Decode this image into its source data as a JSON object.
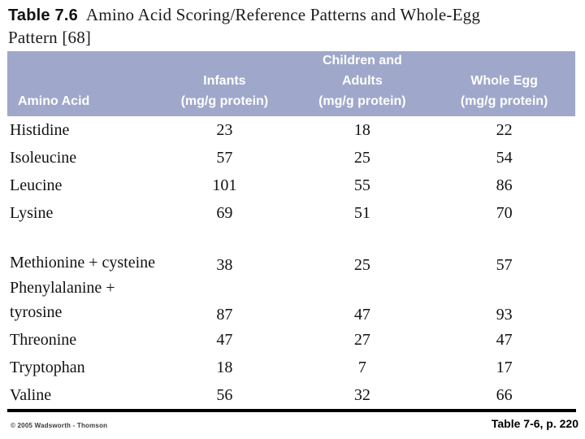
{
  "page": {
    "title_label": "Table 7.6",
    "title_text": "Amino Acid Scoring/Reference Patterns and Whole-Egg Pattern [68]"
  },
  "table": {
    "columns": [
      {
        "label": "Amino Acid",
        "unit": ""
      },
      {
        "label": "Infants",
        "unit": "(mg/g protein)"
      },
      {
        "label": "Children and Adults",
        "unit": "(mg/g protein)"
      },
      {
        "label": "Whole Egg",
        "unit": "(mg/g protein)"
      }
    ],
    "rows": [
      {
        "name": "Histidine",
        "infants": "23",
        "children_adults": "18",
        "whole_egg": "22"
      },
      {
        "name": "Isoleucine",
        "infants": "57",
        "children_adults": "25",
        "whole_egg": "54"
      },
      {
        "name": "Leucine",
        "infants": "101",
        "children_adults": "55",
        "whole_egg": "86"
      },
      {
        "name": "Lysine",
        "infants": "69",
        "children_adults": "51",
        "whole_egg": "70"
      },
      {
        "name": "Methionine + cysteine",
        "infants": "38",
        "children_adults": "25",
        "whole_egg": "57"
      },
      {
        "name": "Phenylalanine + tyrosine",
        "infants": "87",
        "children_adults": "47",
        "whole_egg": "93"
      },
      {
        "name": "Threonine",
        "infants": "47",
        "children_adults": "27",
        "whole_egg": "47"
      },
      {
        "name": "Tryptophan",
        "infants": "18",
        "children_adults": "7",
        "whole_egg": "17"
      },
      {
        "name": "Valine",
        "infants": "56",
        "children_adults": "32",
        "whole_egg": "66"
      }
    ]
  },
  "footer": {
    "copyright": "© 2005 Wadsworth - Thomson",
    "caption": "Table 7-6, p. 220"
  },
  "colors": {
    "header_bg": "#9fa8ca",
    "header_text": "#ffffff"
  }
}
